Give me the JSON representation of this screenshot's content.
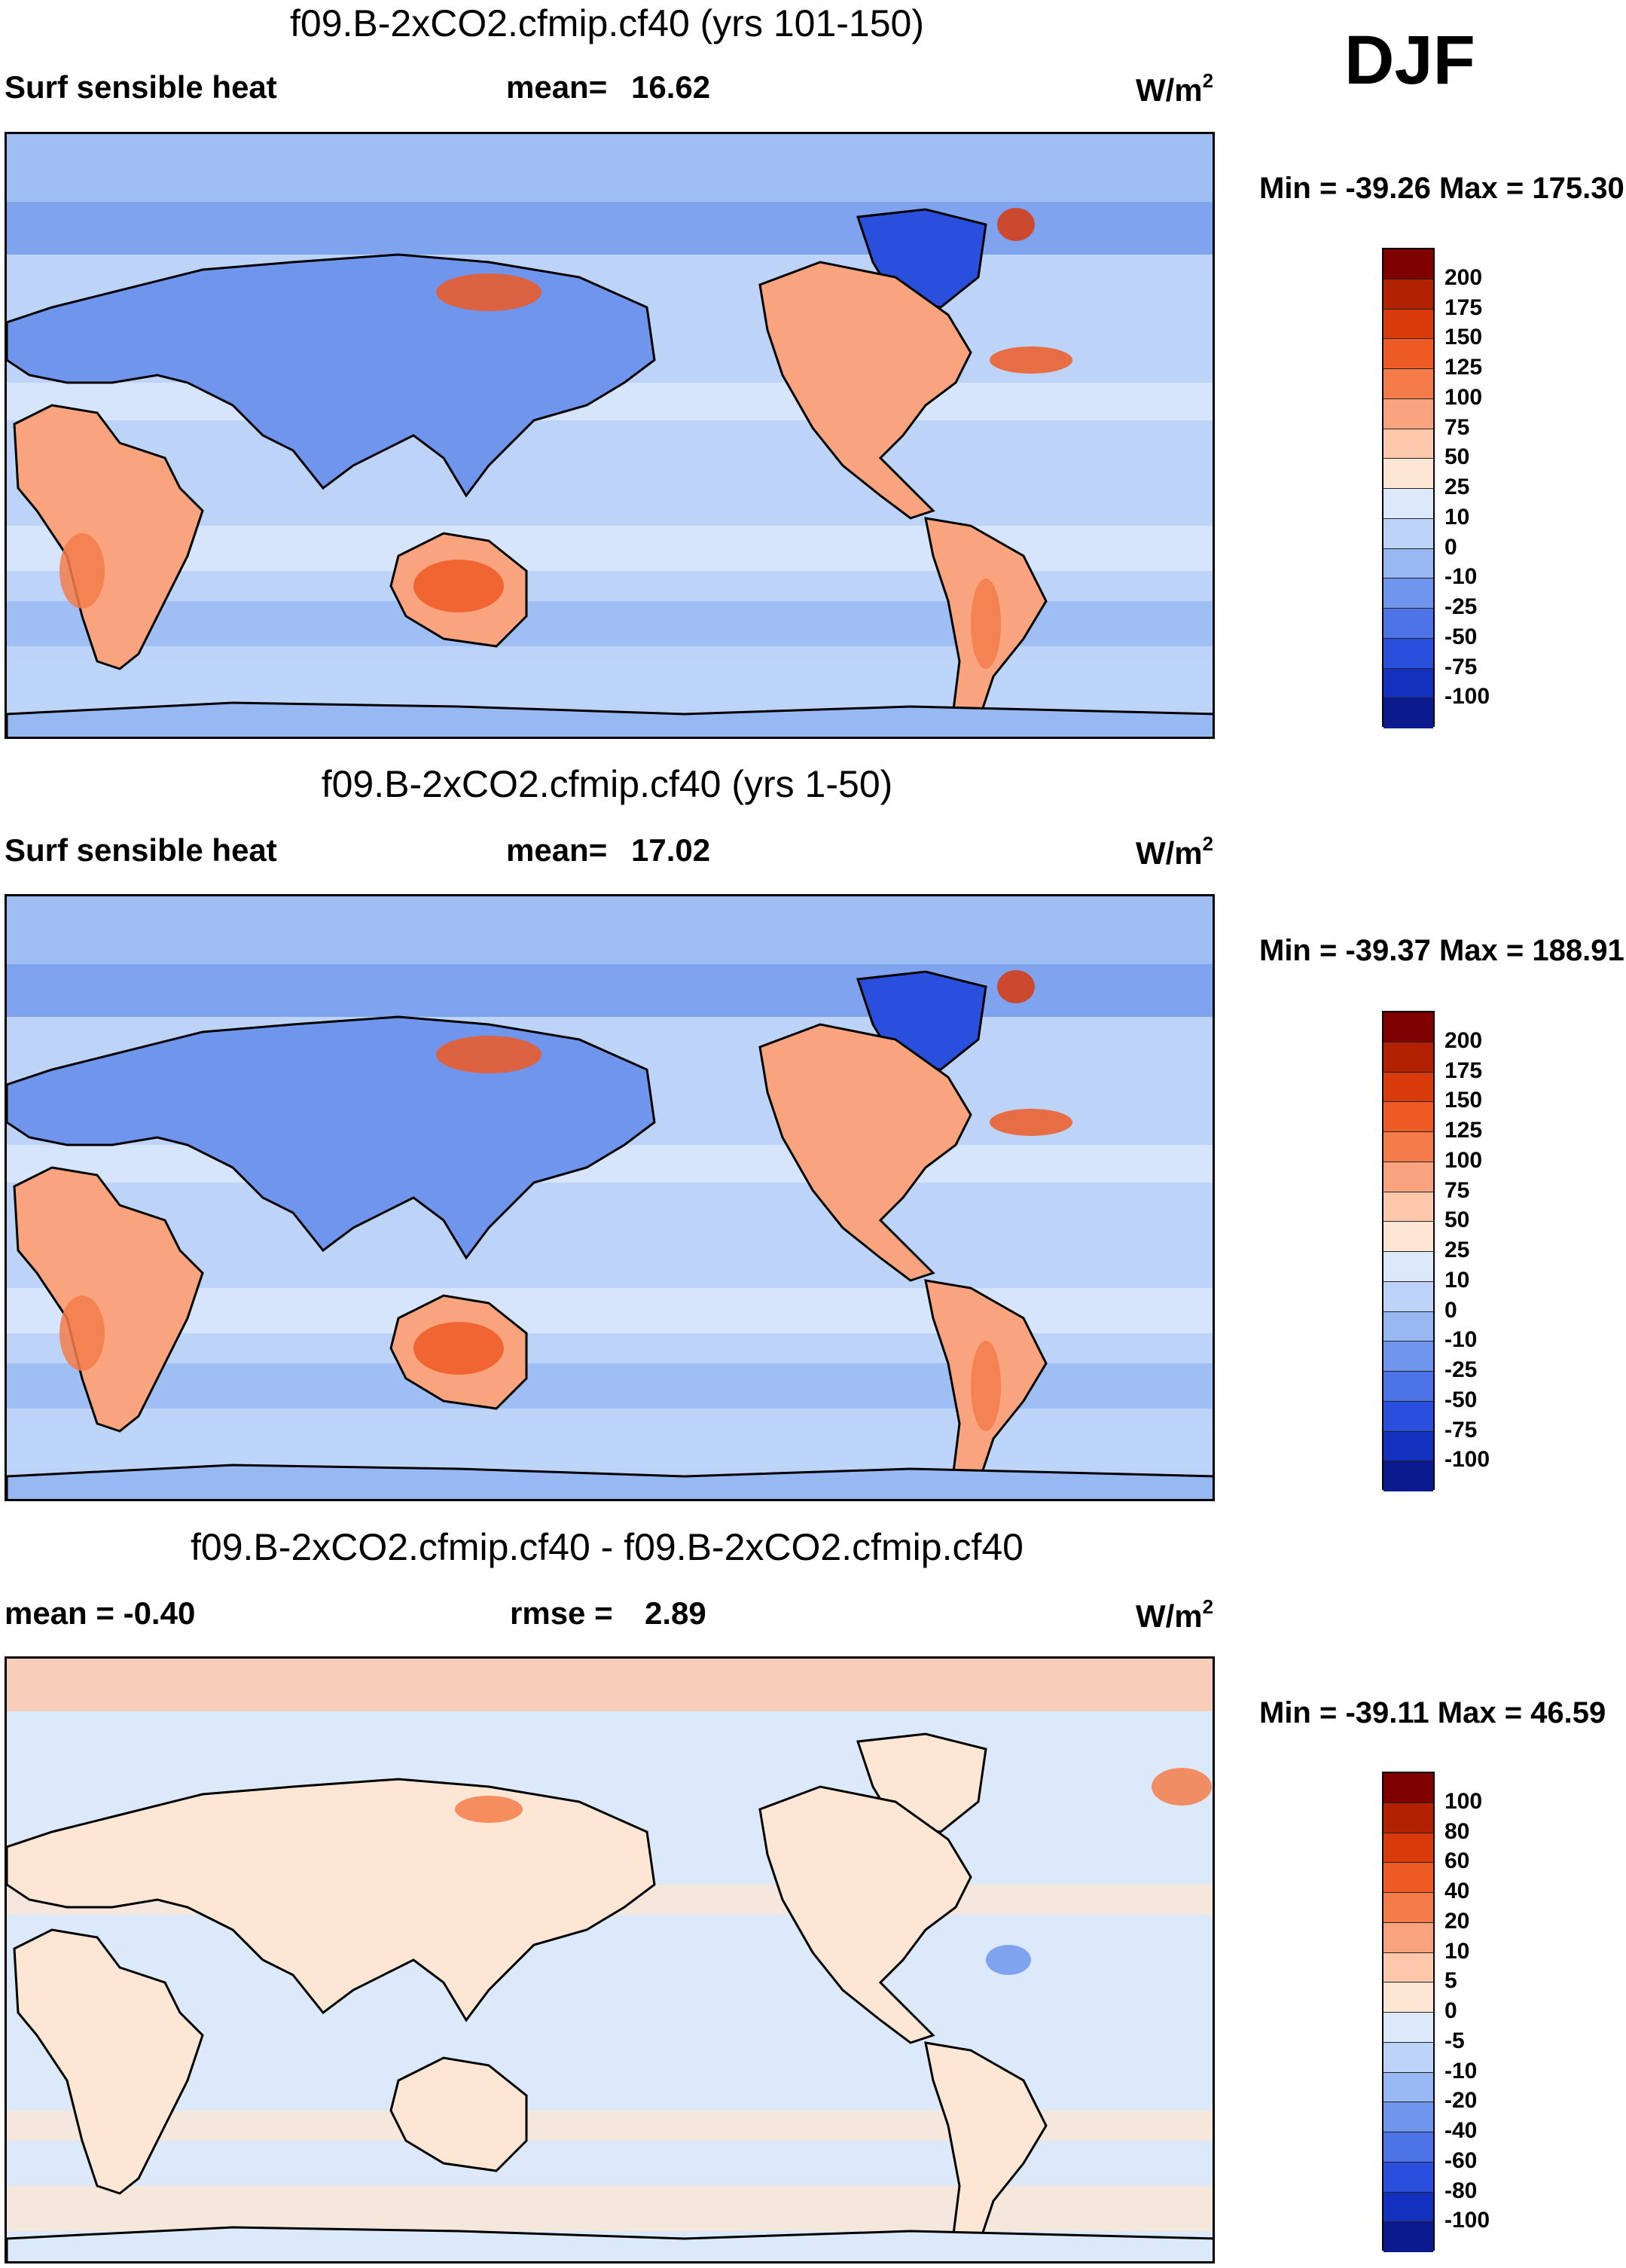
{
  "season": "DJF",
  "panels": [
    {
      "title": "f09.B-2xCO2.cfmip.cf40 (yrs 101-150)",
      "left_label": "Surf sensible heat",
      "stat_label": "mean=",
      "stat_value": "16.62",
      "units": "W/m",
      "units_sup": "2",
      "minmax": "Min = -39.26 Max = 175.30",
      "colorbar": {
        "colors": [
          "#7f0000",
          "#b22200",
          "#d83a0c",
          "#ee5a24",
          "#f57c4a",
          "#f9a47e",
          "#fcc7aa",
          "#fde6d4",
          "#dce9fb",
          "#bdd4f8",
          "#97b8f2",
          "#6f96ec",
          "#4d74e6",
          "#2a4fdc",
          "#1330be",
          "#0b1a8e"
        ],
        "labels": [
          "200",
          "175",
          "150",
          "125",
          "100",
          "75",
          "50",
          "25",
          "10",
          "0",
          "-10",
          "-25",
          "-50",
          "-75",
          "-100"
        ]
      },
      "map_data": {
        "field": "Surf sensible heat",
        "mean": 16.62,
        "min": -39.26,
        "max": 175.3
      }
    },
    {
      "title": "f09.B-2xCO2.cfmip.cf40 (yrs 1-50)",
      "left_label": "Surf sensible heat",
      "stat_label": "mean=",
      "stat_value": "17.02",
      "units": "W/m",
      "units_sup": "2",
      "minmax": "Min = -39.37 Max = 188.91",
      "colorbar": {
        "colors": [
          "#7f0000",
          "#b22200",
          "#d83a0c",
          "#ee5a24",
          "#f57c4a",
          "#f9a47e",
          "#fcc7aa",
          "#fde6d4",
          "#dce9fb",
          "#bdd4f8",
          "#97b8f2",
          "#6f96ec",
          "#4d74e6",
          "#2a4fdc",
          "#1330be",
          "#0b1a8e"
        ],
        "labels": [
          "200",
          "175",
          "150",
          "125",
          "100",
          "75",
          "50",
          "25",
          "10",
          "0",
          "-10",
          "-25",
          "-50",
          "-75",
          "-100"
        ]
      },
      "map_data": {
        "field": "Surf sensible heat",
        "mean": 17.02,
        "min": -39.37,
        "max": 188.91
      }
    },
    {
      "title": "f09.B-2xCO2.cfmip.cf40 - f09.B-2xCO2.cfmip.cf40",
      "left_label": "mean =  -0.40",
      "stat_label": "rmse =",
      "stat_value": "2.89",
      "units": "W/m",
      "units_sup": "2",
      "minmax": "Min = -39.11 Max =  46.59",
      "colorbar": {
        "colors": [
          "#7f0000",
          "#b22200",
          "#d83a0c",
          "#ee5a24",
          "#f57c4a",
          "#f9a47e",
          "#fcc7aa",
          "#fde6d4",
          "#dce9fb",
          "#bdd4f8",
          "#97b8f2",
          "#6f96ec",
          "#4d74e6",
          "#2a4fdc",
          "#1330be",
          "#0b1a8e"
        ],
        "labels": [
          "100",
          "80",
          "60",
          "40",
          "20",
          "10",
          "5",
          "0",
          "-5",
          "-10",
          "-20",
          "-40",
          "-60",
          "-80",
          "-100"
        ]
      },
      "map_data": {
        "field": "difference",
        "mean": -0.4,
        "rmse": 2.89,
        "min": -39.11,
        "max": 46.59
      }
    }
  ]
}
